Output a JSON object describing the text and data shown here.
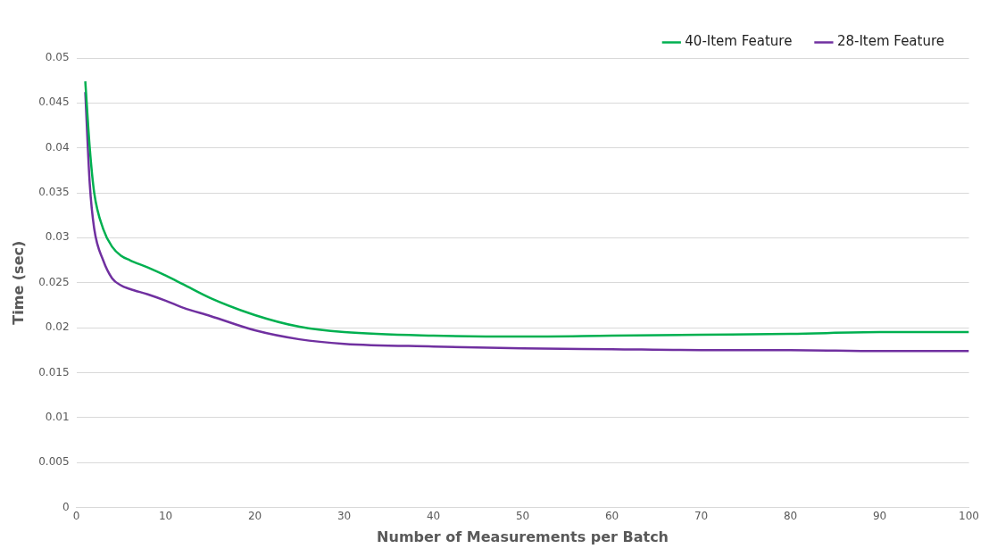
{
  "chart_data": {
    "type": "line",
    "xlabel": "Number of Measurements per Batch",
    "ylabel": "Time (sec)",
    "xlim": [
      0,
      100
    ],
    "xticks": [
      0,
      10,
      20,
      30,
      40,
      50,
      60,
      70,
      80,
      90,
      100
    ],
    "ylim": [
      0,
      0.05
    ],
    "yticks": [
      0,
      0.005,
      0.01,
      0.015,
      0.02,
      0.025,
      0.03,
      0.035,
      0.04,
      0.045,
      0.05
    ],
    "grid": "y",
    "legend": "top right",
    "marker": "none",
    "line_style": "solid",
    "x": [
      1,
      1.5,
      2,
      3,
      4,
      5,
      6,
      8,
      10,
      12,
      15,
      20,
      25,
      30,
      40,
      50,
      60,
      70,
      80,
      90,
      100
    ],
    "series": [
      {
        "name": "40-Item Feature",
        "color": "#00b050",
        "values": [
          0.0474,
          0.04,
          0.035,
          0.031,
          0.029,
          0.028,
          0.0275,
          0.0267,
          0.0258,
          0.0248,
          0.0233,
          0.0214,
          0.0201,
          0.0195,
          0.0191,
          0.019,
          0.0191,
          0.0192,
          0.0193,
          0.0195,
          0.0195
        ]
      },
      {
        "name": "28-Item Feature",
        "color": "#7030a0",
        "values": [
          0.0462,
          0.036,
          0.031,
          0.0275,
          0.0255,
          0.0247,
          0.0243,
          0.0237,
          0.023,
          0.0222,
          0.0213,
          0.0197,
          0.0187,
          0.0182,
          0.0179,
          0.0177,
          0.0176,
          0.0175,
          0.0175,
          0.0174,
          0.0174
        ]
      }
    ]
  }
}
